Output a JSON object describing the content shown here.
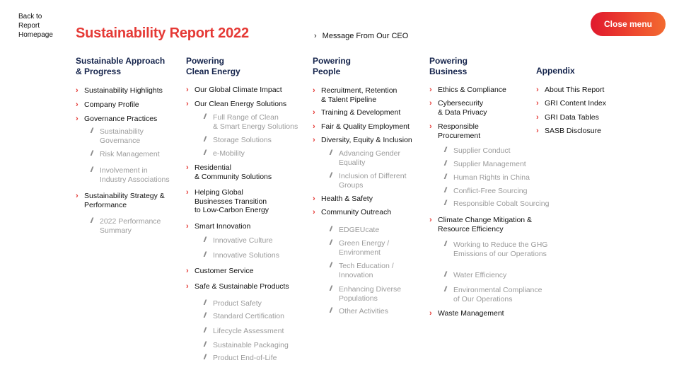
{
  "header": {
    "back_link": "Back to Report Homepage",
    "title": "Sustainability Report 2022",
    "ceo_link": "Message From Our CEO",
    "close_button": "Close menu"
  },
  "columns": [
    {
      "heading": [
        "Sustainable Approach",
        "& Progress"
      ],
      "items": [
        {
          "label": [
            "Sustainability Highlights"
          ]
        },
        {
          "label": [
            "Company Profile"
          ]
        },
        {
          "label": [
            "Governance Practices"
          ],
          "subs": [
            [
              "Sustainability",
              "Governance"
            ],
            [
              "Risk Management"
            ],
            [
              "Involvement in",
              "Industry Associations"
            ]
          ]
        },
        {
          "label": [
            "Sustainability Strategy &",
            "Performance"
          ],
          "subs": [
            [
              "2022 Performance",
              "Summary"
            ]
          ]
        }
      ]
    },
    {
      "heading": [
        "Powering",
        "Clean Energy"
      ],
      "items": [
        {
          "label": [
            "Our Global Climate Impact"
          ]
        },
        {
          "label": [
            "Our Clean Energy Solutions"
          ],
          "subs": [
            [
              "Full Range of Clean",
              "& Smart Energy Solutions"
            ],
            [
              "Storage Solutions"
            ],
            [
              "e-Mobility"
            ]
          ]
        },
        {
          "label": [
            "Residential",
            "& Community Solutions"
          ]
        },
        {
          "label": [
            "Helping Global",
            "Businesses Transition",
            "to Low-Carbon Energy"
          ]
        },
        {
          "label": [
            "Smart Innovation"
          ],
          "subs": [
            [
              "Innovative Culture"
            ],
            [
              "Innovative Solutions"
            ]
          ]
        },
        {
          "label": [
            "Customer Service"
          ]
        },
        {
          "label": [
            "Safe & Sustainable Products"
          ],
          "subs": [
            [
              "Product Safety"
            ],
            [
              "Standard Certification"
            ],
            [
              "Lifecycle Assessment"
            ],
            [
              "Sustainable Packaging"
            ],
            [
              "Product End-of-Life"
            ]
          ]
        }
      ]
    },
    {
      "heading": [
        "Powering",
        "People"
      ],
      "items": [
        {
          "label": [
            "Recruitment, Retention",
            "& Talent Pipeline"
          ]
        },
        {
          "label": [
            "Training & Development"
          ]
        },
        {
          "label": [
            "Fair & Quality Employment"
          ]
        },
        {
          "label": [
            "Diversity, Equity & Inclusion"
          ],
          "subs": [
            [
              "Advancing Gender",
              "Equality"
            ],
            [
              "Inclusion of Different",
              "Groups"
            ]
          ]
        },
        {
          "label": [
            "Health & Safety"
          ]
        },
        {
          "label": [
            "Community Outreach"
          ],
          "subs": [
            [
              "EDGEUcate"
            ],
            [
              "Green Energy /",
              "Environment"
            ],
            [
              "Tech Education /",
              "Innovation"
            ],
            [
              "Enhancing Diverse",
              "Populations"
            ],
            [
              "Other Activities"
            ]
          ]
        }
      ]
    },
    {
      "heading": [
        "Powering",
        "Business"
      ],
      "items": [
        {
          "label": [
            "Ethics & Compliance"
          ]
        },
        {
          "label": [
            "Cybersecurity",
            "& Data Privacy"
          ]
        },
        {
          "label": [
            "Responsible",
            "Procurement"
          ],
          "subs": [
            [
              "Supplier Conduct"
            ],
            [
              "Supplier Management"
            ],
            [
              "Human Rights in China"
            ],
            [
              "Conflict-Free Sourcing"
            ],
            [
              "Responsible Cobalt Sourcing"
            ]
          ]
        },
        {
          "label": [
            "Climate Change Mitigation &",
            "Resource Efficiency"
          ],
          "subs": [
            [
              "Working to Reduce the GHG",
              "Emissions of our Operations"
            ],
            [
              "Water Efficiency"
            ],
            [
              "Environmental Compliance",
              "of Our Operations"
            ]
          ]
        },
        {
          "label": [
            "Waste Management"
          ]
        }
      ]
    },
    {
      "heading": [
        "Appendix"
      ],
      "items": [
        {
          "label": [
            "About This Report"
          ]
        },
        {
          "label": [
            "GRI Content Index"
          ]
        },
        {
          "label": [
            "GRI Data Tables"
          ]
        },
        {
          "label": [
            "SASB Disclosure"
          ]
        }
      ]
    }
  ],
  "icons": {
    "chevron": "chevron-right-icon",
    "slash": "slash-icon"
  },
  "colors": {
    "accent": "#e53935",
    "heading": "#14234b",
    "sub_text": "#9b9b9b"
  }
}
